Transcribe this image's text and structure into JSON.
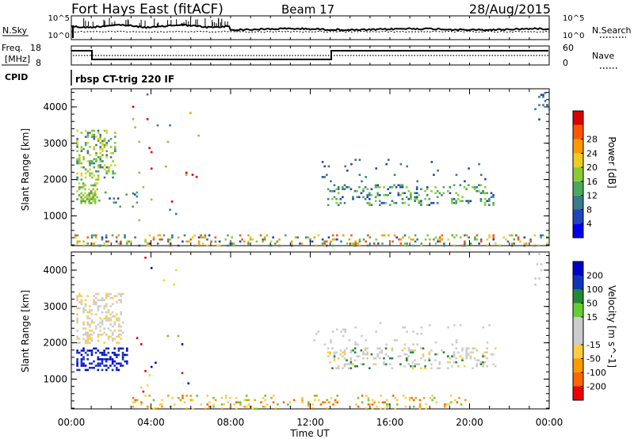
{
  "header": {
    "station": "Fort Hays East (fitACF)",
    "beam": "Beam 17",
    "date": "28/Aug/2015"
  },
  "noise_panel": {
    "left_label": "N.Sky",
    "right_label": "N.Search",
    "left_ticks": [
      "10^5",
      "10^0"
    ],
    "right_ticks": [
      "10^5",
      "10^0"
    ]
  },
  "freq_panel": {
    "left_label_1": "Freq.",
    "left_label_2": "[MHz]",
    "right_label": "Nave",
    "left_ticks": [
      "18",
      "8"
    ],
    "right_ticks": [
      "60",
      "0"
    ]
  },
  "cpid_panel": {
    "label": "CPID",
    "text": "rbsp CT-trig 220 IF"
  },
  "colors": {
    "power_scale": [
      "#0000ee",
      "#2244bb",
      "#3a7a8a",
      "#4aaa5a",
      "#88cc33",
      "#eecc22",
      "#ff9900",
      "#ff5500",
      "#dd0000"
    ],
    "velocity_scale": [
      "#0000cc",
      "#1133bb",
      "#228833",
      "#66cc33",
      "#cccccc",
      "#cccccc",
      "#ffcc44",
      "#ff9900",
      "#ff6600",
      "#ee0000"
    ]
  },
  "chart_data": [
    {
      "type": "heatmap",
      "name": "power",
      "ylabel": "Slant Range [km]",
      "ylim": [
        180,
        4500
      ],
      "xlim": [
        0,
        24
      ],
      "yticks": [
        "1000",
        "2000",
        "3000",
        "4000"
      ],
      "colorbar_label": "Power [dB]",
      "colorbar_ticks": [
        "4",
        "8",
        "12",
        "16",
        "20",
        "24",
        "28"
      ],
      "regions": [
        {
          "t0": 0.2,
          "t1": 1.3,
          "r0": 1350,
          "r1": 1950,
          "levels": [
            3,
            4,
            5
          ],
          "density": 0.45
        },
        {
          "t0": 0.2,
          "t1": 2.2,
          "r0": 2000,
          "r1": 3400,
          "levels": [
            2,
            3,
            4,
            5
          ],
          "density": 0.3
        },
        {
          "t0": 1.3,
          "t1": 3.3,
          "r0": 1200,
          "r1": 1700,
          "levels": [
            1,
            2,
            3
          ],
          "density": 0.06
        },
        {
          "t0": 12.8,
          "t1": 21.3,
          "r0": 1300,
          "r1": 1900,
          "levels": [
            1,
            2,
            3,
            4
          ],
          "density": 0.22
        },
        {
          "t0": 12.0,
          "t1": 21.0,
          "r0": 1950,
          "r1": 2600,
          "levels": [
            1,
            2
          ],
          "density": 0.04
        },
        {
          "t0": 0.0,
          "t1": 24.0,
          "r0": 180,
          "r1": 520,
          "levels": [
            1,
            2,
            3,
            4,
            5,
            6,
            7
          ],
          "density": 0.18
        },
        {
          "t0": 3.0,
          "t1": 6.5,
          "r0": 600,
          "r1": 4400,
          "levels": [
            2,
            4,
            6,
            8
          ],
          "density": 0.012
        },
        {
          "t0": 23.0,
          "t1": 24.0,
          "r0": 3600,
          "r1": 4500,
          "levels": [
            1,
            2
          ],
          "density": 0.05
        }
      ]
    },
    {
      "type": "heatmap",
      "name": "velocity",
      "ylabel": "Slant Range [km]",
      "ylim": [
        180,
        4500
      ],
      "xlim": [
        0,
        24
      ],
      "yticks": [
        "1000",
        "2000",
        "3000",
        "4000"
      ],
      "colorbar_label": "Velocity [m s^-1]",
      "colorbar_ticks": [
        "200",
        "100",
        "50",
        "15",
        "-15",
        "-50",
        "-100",
        "-200"
      ],
      "regions": [
        {
          "t0": 0.2,
          "t1": 2.8,
          "r0": 1250,
          "r1": 1900,
          "levels": [
            0,
            1
          ],
          "density": 0.45
        },
        {
          "t0": 0.2,
          "t1": 2.6,
          "r0": 2000,
          "r1": 3400,
          "levels": [
            4,
            5,
            6
          ],
          "density": 0.3
        },
        {
          "t0": 12.8,
          "t1": 21.3,
          "r0": 1300,
          "r1": 1900,
          "levels": [
            4,
            5,
            4,
            5,
            6,
            2
          ],
          "density": 0.22
        },
        {
          "t0": 12.0,
          "t1": 21.0,
          "r0": 1950,
          "r1": 2600,
          "levels": [
            4,
            5
          ],
          "density": 0.04
        },
        {
          "t0": 3.0,
          "t1": 20.0,
          "r0": 180,
          "r1": 600,
          "levels": [
            6,
            7,
            8,
            3,
            6
          ],
          "density": 0.16
        },
        {
          "t0": 3.0,
          "t1": 6.5,
          "r0": 600,
          "r1": 4400,
          "levels": [
            0,
            3,
            6,
            9
          ],
          "density": 0.012
        },
        {
          "t0": 23.0,
          "t1": 24.0,
          "r0": 3600,
          "r1": 4500,
          "levels": [
            4,
            5
          ],
          "density": 0.05
        }
      ]
    }
  ],
  "time_axis": {
    "ticks": [
      "00:00",
      "04:00",
      "08:00",
      "12:00",
      "16:00",
      "20:00",
      "00:00"
    ],
    "label": "Time UT"
  }
}
